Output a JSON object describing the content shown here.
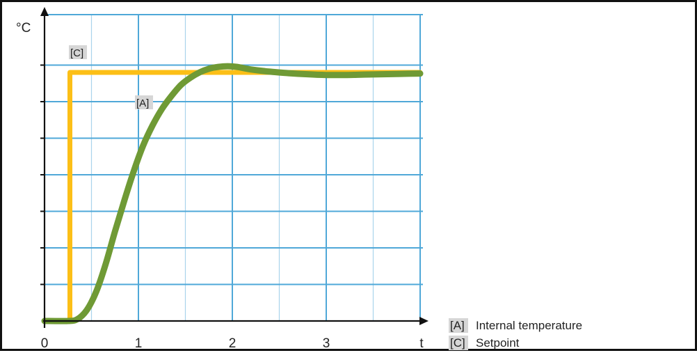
{
  "chart_data": {
    "type": "line",
    "xlabel": "t",
    "ylabel": "°C",
    "xlim": [
      0,
      4
    ],
    "ylim": [
      0,
      7
    ],
    "x_ticks": [
      "0",
      "1",
      "2",
      "3"
    ],
    "grid": true,
    "legend_position": "bottom-right",
    "series": [
      {
        "key": "[A]",
        "name": "Internal temperature",
        "color": "#6f9a35",
        "x": [
          0,
          0.25,
          0.35,
          0.45,
          0.55,
          0.65,
          0.75,
          0.85,
          0.95,
          1.05,
          1.15,
          1.25,
          1.35,
          1.45,
          1.55,
          1.65,
          1.75,
          1.85,
          1.95,
          2.05,
          2.2,
          2.4,
          2.6,
          2.8,
          3.0,
          3.2,
          3.4,
          3.6,
          3.8,
          4.0
        ],
        "y": [
          0,
          0,
          0.05,
          0.3,
          0.8,
          1.55,
          2.45,
          3.3,
          4.1,
          4.8,
          5.35,
          5.8,
          6.15,
          6.45,
          6.65,
          6.8,
          6.9,
          6.95,
          6.97,
          6.95,
          6.88,
          6.82,
          6.78,
          6.75,
          6.73,
          6.73,
          6.74,
          6.75,
          6.76,
          6.77
        ]
      },
      {
        "key": "[C]",
        "name": "Setpoint",
        "color": "#fcbf17",
        "x": [
          0,
          0.27,
          0.27,
          4.0
        ],
        "y": [
          0,
          0,
          6.8,
          6.8
        ]
      }
    ],
    "legend": [
      {
        "key": "[A]",
        "label": "Internal temperature"
      },
      {
        "key": "[C]",
        "label": "Setpoint"
      }
    ]
  }
}
